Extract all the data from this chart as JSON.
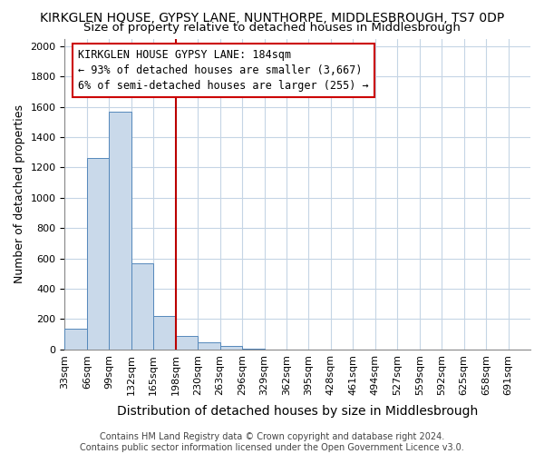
{
  "title": "KIRKGLEN HOUSE, GYPSY LANE, NUNTHORPE, MIDDLESBROUGH, TS7 0DP",
  "subtitle": "Size of property relative to detached houses in Middlesbrough",
  "xlabel": "Distribution of detached houses by size in Middlesbrough",
  "ylabel": "Number of detached properties",
  "bin_labels": [
    "33sqm",
    "66sqm",
    "99sqm",
    "132sqm",
    "165sqm",
    "198sqm",
    "230sqm",
    "263sqm",
    "296sqm",
    "329sqm",
    "362sqm",
    "395sqm",
    "428sqm",
    "461sqm",
    "494sqm",
    "527sqm",
    "559sqm",
    "592sqm",
    "625sqm",
    "658sqm",
    "691sqm"
  ],
  "bar_heights": [
    140,
    1265,
    1570,
    570,
    220,
    90,
    50,
    25,
    8,
    2,
    0,
    0,
    0,
    0,
    0,
    0,
    0,
    0,
    0,
    0
  ],
  "bar_color": "#c9d9ea",
  "bar_edge_color": "#5588bb",
  "vline_x": 5,
  "vline_color": "#bb0000",
  "ylim": [
    0,
    2050
  ],
  "yticks": [
    0,
    200,
    400,
    600,
    800,
    1000,
    1200,
    1400,
    1600,
    1800,
    2000
  ],
  "annotation_text": "KIRKGLEN HOUSE GYPSY LANE: 184sqm\n← 93% of detached houses are smaller (3,667)\n6% of semi-detached houses are larger (255) →",
  "annotation_box_color": "#ffffff",
  "annotation_box_edge": "#cc0000",
  "footer_line1": "Contains HM Land Registry data © Crown copyright and database right 2024.",
  "footer_line2": "Contains public sector information licensed under the Open Government Licence v3.0.",
  "title_fontsize": 10,
  "subtitle_fontsize": 9.5,
  "xlabel_fontsize": 10,
  "ylabel_fontsize": 9,
  "tick_fontsize": 8,
  "annotation_fontsize": 8.5,
  "footer_fontsize": 7
}
